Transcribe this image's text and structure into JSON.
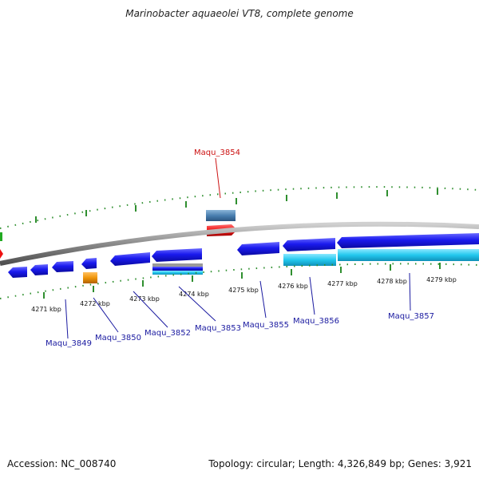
{
  "title": "Marinobacter aquaeolei VT8, complete genome",
  "footer": {
    "accession": "Accession: NC_008740",
    "summary": "Topology: circular; Length: 4,326,849 bp; Genes: 3,921"
  },
  "colors": {
    "backbone": "#8a8a8a",
    "tick": "#2f8f2f",
    "gene_forward": "#1a1aee",
    "gene_reverse": "#1a1aee",
    "gene_cyan": "#22c8ee",
    "gene_highlight": "#ee1111",
    "gene_steel": "#4a7fb0",
    "gene_orange": "#f0960a",
    "label_blue": "#1a1aa0",
    "label_red": "#cc1111"
  },
  "scale_labels": [
    "4271 kbp",
    "4272 kbp",
    "4273 kbp",
    "4274 kbp",
    "4275 kbp",
    "4276 kbp",
    "4277 kbp",
    "4278 kbp",
    "4279 kbp"
  ],
  "gene_labels": [
    {
      "text": "Maqu_3849",
      "color": "blue"
    },
    {
      "text": "Maqu_3850",
      "color": "blue"
    },
    {
      "text": "Maqu_3852",
      "color": "blue"
    },
    {
      "text": "Maqu_3853",
      "color": "blue"
    },
    {
      "text": "Maqu_3855",
      "color": "blue"
    },
    {
      "text": "Maqu_3856",
      "color": "blue"
    },
    {
      "text": "Maqu_3857",
      "color": "blue"
    },
    {
      "text": "Maqu_3854",
      "color": "red"
    }
  ]
}
